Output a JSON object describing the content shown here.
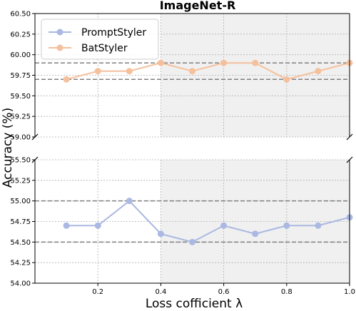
{
  "chart_data": {
    "type": "line",
    "title": "ImageNet-R",
    "xlabel": "Loss cofficient λ",
    "ylabel": "Accuracy (%)",
    "x": [
      0.1,
      0.2,
      0.3,
      0.4,
      0.5,
      0.6,
      0.7,
      0.8,
      0.9,
      1.0
    ],
    "xlim": [
      0.0,
      1.0
    ],
    "xticks": [
      "0.2",
      "0.4",
      "0.6",
      "0.8",
      "1.0"
    ],
    "broken_y_axis": true,
    "upper_ylim": [
      59.0,
      60.5
    ],
    "upper_yticks": [
      "59.00",
      "59.25",
      "59.50",
      "59.75",
      "60.00",
      "60.25",
      "60.50"
    ],
    "lower_ylim": [
      54.0,
      55.5
    ],
    "lower_yticks": [
      "54.00",
      "54.25",
      "54.50",
      "54.75",
      "55.00",
      "55.25",
      "55.50"
    ],
    "series": [
      {
        "name": "PromptStyler",
        "color": "#aab8e2",
        "panel": "lower",
        "values": [
          54.7,
          54.7,
          55.0,
          54.6,
          54.5,
          54.7,
          54.6,
          54.7,
          54.7,
          54.8
        ]
      },
      {
        "name": "BatStyler",
        "color": "#f5c09c",
        "panel": "upper",
        "values": [
          59.7,
          59.8,
          59.8,
          59.9,
          59.8,
          59.9,
          59.9,
          59.7,
          59.8,
          59.9
        ]
      }
    ],
    "reference_lines": {
      "upper": [
        59.9,
        59.7
      ],
      "lower": [
        55.0,
        54.5
      ]
    },
    "shaded_region_x": [
      0.4,
      1.0
    ],
    "grid": true,
    "legend_position": "top-left"
  }
}
